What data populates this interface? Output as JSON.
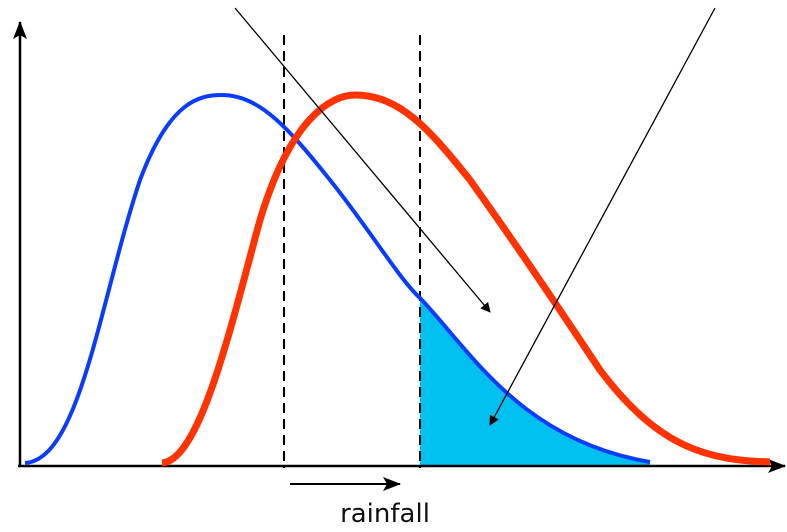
{
  "axis_label": "rainfall"
}
